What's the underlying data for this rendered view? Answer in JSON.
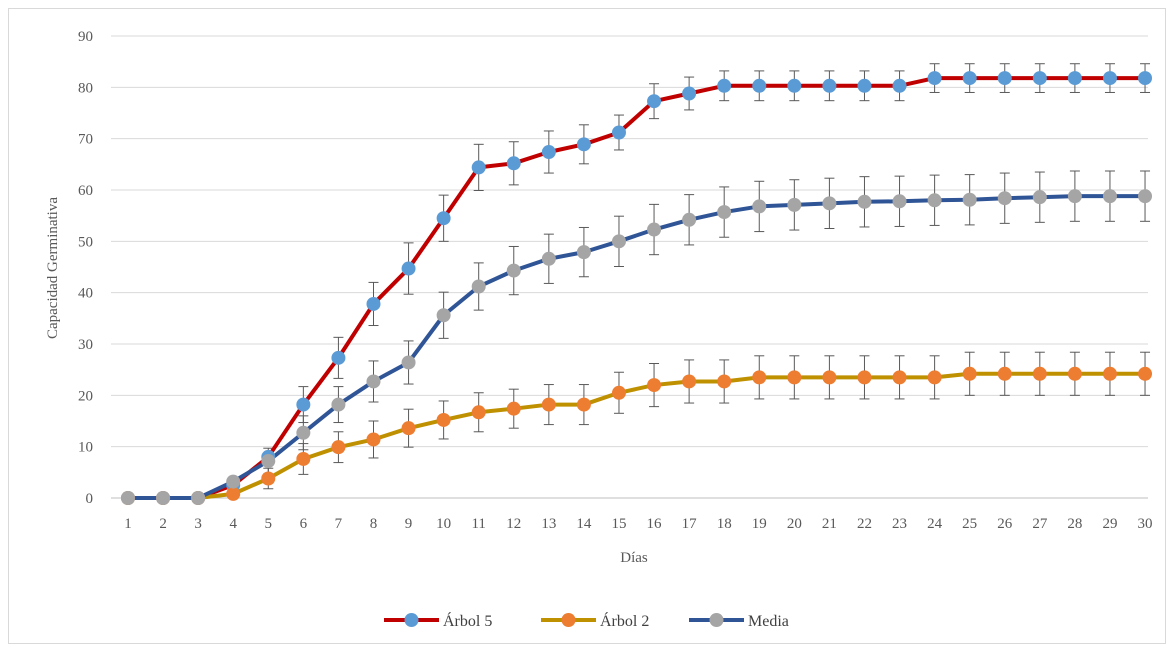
{
  "chart_data": {
    "type": "line",
    "xlabel": "Días",
    "ylabel": "Capacidad Germinativa",
    "ylim": [
      0,
      90
    ],
    "yticks": [
      0,
      10,
      20,
      30,
      40,
      50,
      60,
      70,
      80,
      90
    ],
    "x": [
      1,
      2,
      3,
      4,
      5,
      6,
      7,
      8,
      9,
      10,
      11,
      12,
      13,
      14,
      15,
      16,
      17,
      18,
      19,
      20,
      21,
      22,
      23,
      24,
      25,
      26,
      27,
      28,
      29,
      30
    ],
    "grid": true,
    "legend_position": "bottom",
    "series": [
      {
        "name": "Árbol 5",
        "line_color": "#c00000",
        "marker_color": "#5b9bd5",
        "values": [
          0,
          0,
          0,
          2.5,
          8,
          18.2,
          27.3,
          37.8,
          44.7,
          54.5,
          64.4,
          65.2,
          67.4,
          68.9,
          71.2,
          77.3,
          78.8,
          80.3,
          80.3,
          80.3,
          80.3,
          80.3,
          80.3,
          81.8,
          81.8,
          81.8,
          81.8,
          81.8,
          81.8,
          81.8
        ],
        "errors": [
          0,
          0,
          0,
          0,
          0,
          3.5,
          4,
          4.2,
          5,
          4.5,
          4.5,
          4.2,
          4.1,
          3.8,
          3.4,
          3.4,
          3.2,
          2.9,
          2.9,
          2.9,
          2.9,
          2.9,
          2.9,
          2.8,
          2.8,
          2.8,
          2.8,
          2.8,
          2.8,
          2.8
        ]
      },
      {
        "name": "Árbol 2",
        "line_color": "#bf9000",
        "marker_color": "#ed7d31",
        "values": [
          0,
          0,
          0,
          0.8,
          3.8,
          7.6,
          9.9,
          11.4,
          13.6,
          15.2,
          16.7,
          17.4,
          18.2,
          18.2,
          20.5,
          22,
          22.7,
          22.7,
          23.5,
          23.5,
          23.5,
          23.5,
          23.5,
          23.5,
          24.2,
          24.2,
          24.2,
          24.2,
          24.2,
          24.2
        ],
        "errors": [
          0,
          0,
          0,
          0,
          2,
          3,
          3,
          3.6,
          3.7,
          3.7,
          3.8,
          3.8,
          3.9,
          3.9,
          4,
          4.2,
          4.2,
          4.2,
          4.2,
          4.2,
          4.2,
          4.2,
          4.2,
          4.2,
          4.2,
          4.2,
          4.2,
          4.2,
          4.2,
          4.2
        ]
      },
      {
        "name": "Media",
        "line_color": "#2f5597",
        "marker_color": "#a5a5a5",
        "values": [
          0,
          0,
          0,
          3.2,
          7.2,
          12.7,
          18.2,
          22.7,
          26.4,
          35.6,
          41.2,
          44.3,
          46.6,
          47.9,
          50,
          52.3,
          54.2,
          55.7,
          56.8,
          57.1,
          57.4,
          57.7,
          57.8,
          58,
          58.1,
          58.4,
          58.6,
          58.8,
          58.8,
          58.8
        ],
        "errors": [
          0,
          0,
          0,
          0,
          2.5,
          3.3,
          3.5,
          4,
          4.2,
          4.5,
          4.6,
          4.7,
          4.8,
          4.8,
          4.9,
          4.9,
          4.9,
          4.9,
          4.9,
          4.9,
          4.9,
          4.9,
          4.9,
          4.9,
          4.9,
          4.9,
          4.9,
          4.9,
          4.9,
          4.9
        ]
      }
    ]
  }
}
